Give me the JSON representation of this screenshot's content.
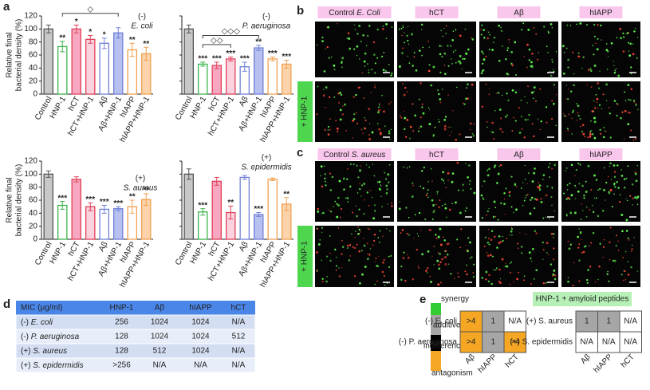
{
  "panel_a": {
    "label": "a"
  },
  "chart_data": [
    {
      "type": "bar",
      "ylabel": [
        "Relative final",
        "bacterial density (%)"
      ],
      "categories": [
        "Control",
        "HNP-1",
        "hCT",
        "hCT+HNP-1",
        "Aβ",
        "Aβ+HNP-1",
        "hIAPP",
        "hIAPP+HNP-1"
      ],
      "values": [
        100,
        73,
        100,
        84,
        78,
        94,
        68,
        62
      ],
      "errors": [
        6,
        8,
        6,
        6,
        8,
        8,
        10,
        10
      ],
      "stars": [
        null,
        "**",
        "*",
        "*",
        "*",
        null,
        "**",
        "**"
      ],
      "colors": [
        "#c8c8c8",
        "#ffffff",
        "#f7a8c0",
        "#fbd3df",
        "#ffffff",
        "#b8c0f0",
        "#ffffff",
        "#fcd3ab"
      ],
      "edge_colors": [
        "#555555",
        "#3cb44b",
        "#e0405a",
        "#e0405a",
        "#7080d8",
        "#7080d8",
        "#f0a050",
        "#f0a050"
      ],
      "ylim": [
        0,
        120
      ],
      "yticks": [
        0,
        20,
        40,
        60,
        80,
        100,
        120
      ],
      "tick_labels": true,
      "annotations": [
        "(-)",
        "E. coli"
      ],
      "brackets": [
        "◇"
      ]
    },
    {
      "type": "bar",
      "categories": [
        "Control",
        "HNP-1",
        "hCT",
        "hCT+HNP-1",
        "Aβ",
        "Aβ+HNP-1",
        "hIAPP",
        "hIAPP+HNP-1"
      ],
      "values": [
        100,
        46,
        44,
        54,
        42,
        71,
        54,
        46
      ],
      "errors": [
        6,
        3,
        5,
        3,
        7,
        4,
        3,
        6
      ],
      "stars": [
        null,
        "***",
        "***",
        "***",
        "***",
        "**",
        "***",
        "***"
      ],
      "colors": [
        "#c8c8c8",
        "#ffffff",
        "#f7a8c0",
        "#fbd3df",
        "#ffffff",
        "#b8c0f0",
        "#ffffff",
        "#fcd3ab"
      ],
      "edge_colors": [
        "#555555",
        "#3cb44b",
        "#e0405a",
        "#e0405a",
        "#7080d8",
        "#7080d8",
        "#f0a050",
        "#f0a050"
      ],
      "ylim": [
        0,
        120
      ],
      "yticks": [
        0,
        20,
        40,
        60,
        80,
        100,
        120
      ],
      "tick_labels": false,
      "annotations": [
        "(-)",
        "P. aeruginosa"
      ],
      "brackets": [
        "◇◇◇",
        "◇◇"
      ]
    },
    {
      "type": "bar",
      "ylabel": [
        "Relative final",
        "bacterial density (%)"
      ],
      "categories": [
        "Control",
        "HNP-1",
        "hCT",
        "hCT+HNP-1",
        "Aβ",
        "Aβ+HNP-1",
        "hIAPP",
        "hIAPP+HNP-1"
      ],
      "values": [
        100,
        52,
        92,
        50,
        46,
        47,
        50,
        61
      ],
      "errors": [
        5,
        6,
        4,
        6,
        6,
        3,
        10,
        9
      ],
      "stars": [
        null,
        "***",
        null,
        "***",
        "***",
        "***",
        "**",
        "**"
      ],
      "colors": [
        "#c8c8c8",
        "#ffffff",
        "#f7a8c0",
        "#fbd3df",
        "#ffffff",
        "#b8c0f0",
        "#ffffff",
        "#fcd3ab"
      ],
      "edge_colors": [
        "#555555",
        "#3cb44b",
        "#e0405a",
        "#e0405a",
        "#7080d8",
        "#7080d8",
        "#f0a050",
        "#f0a050"
      ],
      "ylim": [
        0,
        120
      ],
      "yticks": [
        0,
        20,
        40,
        60,
        80,
        100,
        120
      ],
      "tick_labels": true,
      "annotations": [
        "(+)",
        "S. aureus"
      ]
    },
    {
      "type": "bar",
      "categories": [
        "Control",
        "HNP-1",
        "hCT",
        "hCT+HNP-1",
        "Aβ",
        "Aβ+HNP-1",
        "hIAPP",
        "hIAPP+HNP-1"
      ],
      "values": [
        100,
        42,
        89,
        41,
        95,
        38,
        92,
        54
      ],
      "errors": [
        8,
        5,
        6,
        10,
        3,
        3,
        2,
        10
      ],
      "stars": [
        null,
        "***",
        null,
        "**",
        null,
        "***",
        null,
        "**"
      ],
      "colors": [
        "#c8c8c8",
        "#ffffff",
        "#f7a8c0",
        "#fbd3df",
        "#ffffff",
        "#b8c0f0",
        "#ffffff",
        "#fcd3ab"
      ],
      "edge_colors": [
        "#555555",
        "#3cb44b",
        "#e0405a",
        "#e0405a",
        "#7080d8",
        "#7080d8",
        "#f0a050",
        "#f0a050"
      ],
      "ylim": [
        0,
        120
      ],
      "yticks": [
        0,
        20,
        40,
        60,
        80,
        100,
        120
      ],
      "tick_labels": false,
      "annotations": [
        "(+)",
        "S. epidermidis"
      ]
    }
  ],
  "panel_b": {
    "label": "b",
    "headers": [
      [
        "Control",
        "E. Coli"
      ],
      [
        "hCT"
      ],
      [
        "Aβ"
      ],
      [
        "hIAPP"
      ]
    ],
    "row_label": "+ HNP-1"
  },
  "panel_c": {
    "label": "c",
    "headers": [
      [
        "Control",
        "S. aureus"
      ],
      [
        "hCT"
      ],
      [
        "Aβ"
      ],
      [
        "hIAPP"
      ]
    ],
    "row_label": "+ HNP-1"
  },
  "panel_d": {
    "label": "d",
    "table": {
      "header": [
        "MIC (μg/ml)",
        "HNP-1",
        "Aβ",
        "hIAPP",
        "hCT"
      ],
      "rows": [
        {
          "sign": "(-)",
          "organism": "E. coli",
          "cells": [
            "256",
            "1024",
            "1024",
            "N/A"
          ]
        },
        {
          "sign": "(-)",
          "organism": "P. aeruginosa",
          "cells": [
            "128",
            "1024",
            "1024",
            "512"
          ]
        },
        {
          "sign": "(+)",
          "organism": "S. aureus",
          "cells": [
            "128",
            "512",
            "1024",
            "N/A"
          ]
        },
        {
          "sign": "(+)",
          "organism": "S. epidermidis",
          "cells": [
            ">256",
            "N/A",
            "N/A",
            "N/A"
          ]
        }
      ]
    }
  },
  "panel_e": {
    "label": "e",
    "legend": [
      {
        "name": "synergy",
        "color": "#33cc33"
      },
      {
        "name": "additive",
        "color": "#a6a6a6"
      },
      {
        "name": "indifference",
        "color": "#000000"
      },
      {
        "name": "antagonism",
        "color": "#f5a623"
      }
    ],
    "title": "HNP-1  +  amyloid peptides",
    "grids": [
      {
        "columns": [
          "Aβ",
          "hIAPP",
          "hCT"
        ],
        "rows": [
          "(-) E. coli",
          "(-) P. aeruginosa"
        ],
        "cells": [
          [
            ">4",
            "1",
            "N/A"
          ],
          [
            ">4",
            "1",
            ">4"
          ]
        ]
      },
      {
        "columns": [
          "Aβ",
          "hIAPP",
          "hCT"
        ],
        "rows": [
          "(+) S. aureus",
          "(+) S. epidermidis"
        ],
        "cells": [
          [
            "1",
            "1",
            "N/A"
          ],
          [
            "N/A",
            "N/A",
            "N/A"
          ]
        ]
      }
    ]
  }
}
